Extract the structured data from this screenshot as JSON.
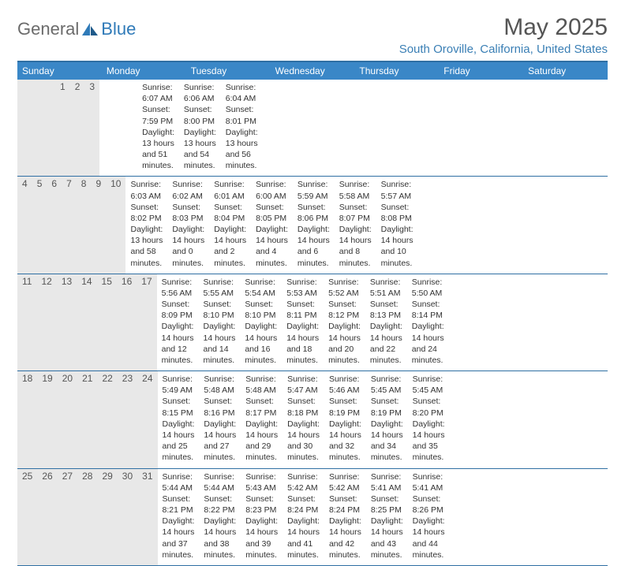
{
  "logo": {
    "text1": "General",
    "text2": "Blue"
  },
  "title": "May 2025",
  "location": "South Oroville, California, United States",
  "weekdays": [
    "Sunday",
    "Monday",
    "Tuesday",
    "Wednesday",
    "Thursday",
    "Friday",
    "Saturday"
  ],
  "colors": {
    "header_bg": "#3a87c7",
    "border": "#2f6fa3",
    "date_bg": "#e8e8e8",
    "logo_gray": "#6b6b6b",
    "logo_blue": "#2f7ab8",
    "location_color": "#3a7fb5"
  },
  "weeks": [
    [
      {
        "date": "",
        "sunrise": "",
        "sunset": "",
        "daylight": ""
      },
      {
        "date": "",
        "sunrise": "",
        "sunset": "",
        "daylight": ""
      },
      {
        "date": "",
        "sunrise": "",
        "sunset": "",
        "daylight": ""
      },
      {
        "date": "",
        "sunrise": "",
        "sunset": "",
        "daylight": ""
      },
      {
        "date": "1",
        "sunrise": "Sunrise: 6:07 AM",
        "sunset": "Sunset: 7:59 PM",
        "daylight": "Daylight: 13 hours and 51 minutes."
      },
      {
        "date": "2",
        "sunrise": "Sunrise: 6:06 AM",
        "sunset": "Sunset: 8:00 PM",
        "daylight": "Daylight: 13 hours and 54 minutes."
      },
      {
        "date": "3",
        "sunrise": "Sunrise: 6:04 AM",
        "sunset": "Sunset: 8:01 PM",
        "daylight": "Daylight: 13 hours and 56 minutes."
      }
    ],
    [
      {
        "date": "4",
        "sunrise": "Sunrise: 6:03 AM",
        "sunset": "Sunset: 8:02 PM",
        "daylight": "Daylight: 13 hours and 58 minutes."
      },
      {
        "date": "5",
        "sunrise": "Sunrise: 6:02 AM",
        "sunset": "Sunset: 8:03 PM",
        "daylight": "Daylight: 14 hours and 0 minutes."
      },
      {
        "date": "6",
        "sunrise": "Sunrise: 6:01 AM",
        "sunset": "Sunset: 8:04 PM",
        "daylight": "Daylight: 14 hours and 2 minutes."
      },
      {
        "date": "7",
        "sunrise": "Sunrise: 6:00 AM",
        "sunset": "Sunset: 8:05 PM",
        "daylight": "Daylight: 14 hours and 4 minutes."
      },
      {
        "date": "8",
        "sunrise": "Sunrise: 5:59 AM",
        "sunset": "Sunset: 8:06 PM",
        "daylight": "Daylight: 14 hours and 6 minutes."
      },
      {
        "date": "9",
        "sunrise": "Sunrise: 5:58 AM",
        "sunset": "Sunset: 8:07 PM",
        "daylight": "Daylight: 14 hours and 8 minutes."
      },
      {
        "date": "10",
        "sunrise": "Sunrise: 5:57 AM",
        "sunset": "Sunset: 8:08 PM",
        "daylight": "Daylight: 14 hours and 10 minutes."
      }
    ],
    [
      {
        "date": "11",
        "sunrise": "Sunrise: 5:56 AM",
        "sunset": "Sunset: 8:09 PM",
        "daylight": "Daylight: 14 hours and 12 minutes."
      },
      {
        "date": "12",
        "sunrise": "Sunrise: 5:55 AM",
        "sunset": "Sunset: 8:10 PM",
        "daylight": "Daylight: 14 hours and 14 minutes."
      },
      {
        "date": "13",
        "sunrise": "Sunrise: 5:54 AM",
        "sunset": "Sunset: 8:10 PM",
        "daylight": "Daylight: 14 hours and 16 minutes."
      },
      {
        "date": "14",
        "sunrise": "Sunrise: 5:53 AM",
        "sunset": "Sunset: 8:11 PM",
        "daylight": "Daylight: 14 hours and 18 minutes."
      },
      {
        "date": "15",
        "sunrise": "Sunrise: 5:52 AM",
        "sunset": "Sunset: 8:12 PM",
        "daylight": "Daylight: 14 hours and 20 minutes."
      },
      {
        "date": "16",
        "sunrise": "Sunrise: 5:51 AM",
        "sunset": "Sunset: 8:13 PM",
        "daylight": "Daylight: 14 hours and 22 minutes."
      },
      {
        "date": "17",
        "sunrise": "Sunrise: 5:50 AM",
        "sunset": "Sunset: 8:14 PM",
        "daylight": "Daylight: 14 hours and 24 minutes."
      }
    ],
    [
      {
        "date": "18",
        "sunrise": "Sunrise: 5:49 AM",
        "sunset": "Sunset: 8:15 PM",
        "daylight": "Daylight: 14 hours and 25 minutes."
      },
      {
        "date": "19",
        "sunrise": "Sunrise: 5:48 AM",
        "sunset": "Sunset: 8:16 PM",
        "daylight": "Daylight: 14 hours and 27 minutes."
      },
      {
        "date": "20",
        "sunrise": "Sunrise: 5:48 AM",
        "sunset": "Sunset: 8:17 PM",
        "daylight": "Daylight: 14 hours and 29 minutes."
      },
      {
        "date": "21",
        "sunrise": "Sunrise: 5:47 AM",
        "sunset": "Sunset: 8:18 PM",
        "daylight": "Daylight: 14 hours and 30 minutes."
      },
      {
        "date": "22",
        "sunrise": "Sunrise: 5:46 AM",
        "sunset": "Sunset: 8:19 PM",
        "daylight": "Daylight: 14 hours and 32 minutes."
      },
      {
        "date": "23",
        "sunrise": "Sunrise: 5:45 AM",
        "sunset": "Sunset: 8:19 PM",
        "daylight": "Daylight: 14 hours and 34 minutes."
      },
      {
        "date": "24",
        "sunrise": "Sunrise: 5:45 AM",
        "sunset": "Sunset: 8:20 PM",
        "daylight": "Daylight: 14 hours and 35 minutes."
      }
    ],
    [
      {
        "date": "25",
        "sunrise": "Sunrise: 5:44 AM",
        "sunset": "Sunset: 8:21 PM",
        "daylight": "Daylight: 14 hours and 37 minutes."
      },
      {
        "date": "26",
        "sunrise": "Sunrise: 5:44 AM",
        "sunset": "Sunset: 8:22 PM",
        "daylight": "Daylight: 14 hours and 38 minutes."
      },
      {
        "date": "27",
        "sunrise": "Sunrise: 5:43 AM",
        "sunset": "Sunset: 8:23 PM",
        "daylight": "Daylight: 14 hours and 39 minutes."
      },
      {
        "date": "28",
        "sunrise": "Sunrise: 5:42 AM",
        "sunset": "Sunset: 8:24 PM",
        "daylight": "Daylight: 14 hours and 41 minutes."
      },
      {
        "date": "29",
        "sunrise": "Sunrise: 5:42 AM",
        "sunset": "Sunset: 8:24 PM",
        "daylight": "Daylight: 14 hours and 42 minutes."
      },
      {
        "date": "30",
        "sunrise": "Sunrise: 5:41 AM",
        "sunset": "Sunset: 8:25 PM",
        "daylight": "Daylight: 14 hours and 43 minutes."
      },
      {
        "date": "31",
        "sunrise": "Sunrise: 5:41 AM",
        "sunset": "Sunset: 8:26 PM",
        "daylight": "Daylight: 14 hours and 44 minutes."
      }
    ]
  ]
}
